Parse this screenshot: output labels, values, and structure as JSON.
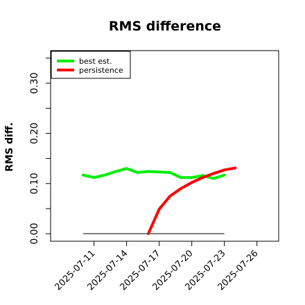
{
  "chart_data": {
    "type": "line",
    "title": "RMS difference",
    "xlabel": "",
    "ylabel": "RMS diff.",
    "x_ticks": [
      "2025-07-11",
      "2025-07-14",
      "2025-07-17",
      "2025-07-20",
      "2025-07-23",
      "2025-07-26"
    ],
    "y_ticks": [
      0.0,
      0.1,
      0.2,
      0.3
    ],
    "y_tick_labels": [
      "0.00",
      "0.10",
      "0.20",
      "0.30"
    ],
    "xlim": [
      "2025-07-07",
      "2025-07-28"
    ],
    "ylim": [
      -0.015,
      0.365
    ],
    "grid": false,
    "legend_position": "top-left",
    "series": [
      {
        "name": "best est.",
        "color": "#00ee00",
        "x": [
          "2025-07-10",
          "2025-07-11",
          "2025-07-12",
          "2025-07-13",
          "2025-07-14",
          "2025-07-15",
          "2025-07-16",
          "2025-07-17",
          "2025-07-18",
          "2025-07-19",
          "2025-07-20",
          "2025-07-21",
          "2025-07-22",
          "2025-07-23"
        ],
        "values": [
          0.117,
          0.112,
          0.117,
          0.124,
          0.13,
          0.122,
          0.124,
          0.123,
          0.122,
          0.112,
          0.112,
          0.116,
          0.11,
          0.117
        ]
      },
      {
        "name": "persistence",
        "color": "#ff0000",
        "x": [
          "2025-07-16",
          "2025-07-17",
          "2025-07-18",
          "2025-07-19",
          "2025-07-20",
          "2025-07-21",
          "2025-07-22",
          "2025-07-23",
          "2025-07-24"
        ],
        "values": [
          0.0,
          0.049,
          0.075,
          0.09,
          0.102,
          0.112,
          0.12,
          0.127,
          0.131
        ]
      },
      {
        "name": "",
        "color": "#555555",
        "x": [
          "2025-07-10",
          "2025-07-23"
        ],
        "values": [
          0.0,
          0.0
        ]
      }
    ]
  }
}
